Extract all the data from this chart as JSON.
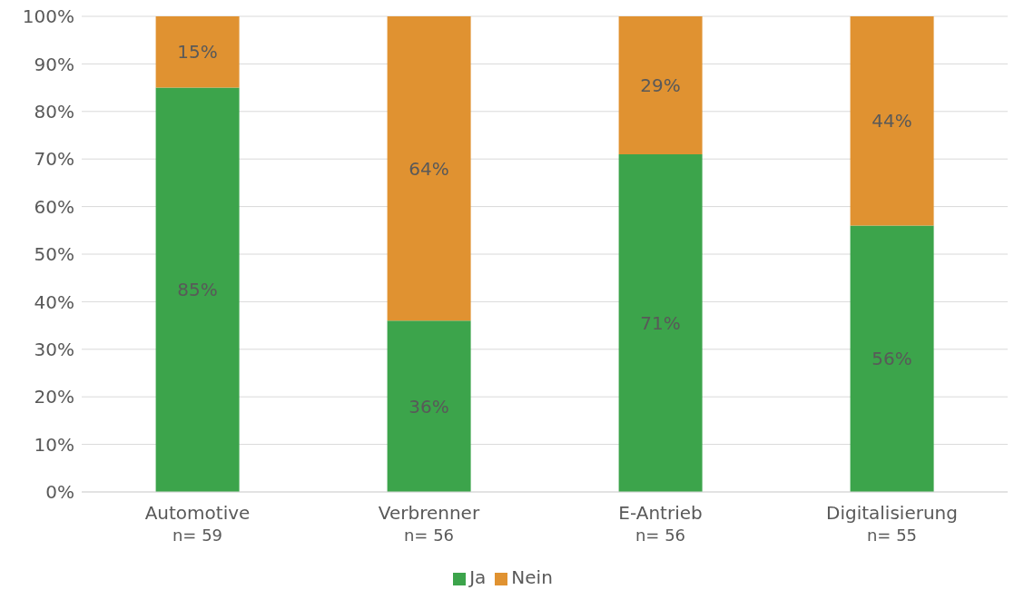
{
  "chart_data": {
    "type": "bar",
    "stacked": true,
    "categories": [
      "Automotive\nn= 59",
      "Verbrenner\nn= 56",
      "E-Antrieb\nn= 56",
      "Digitalisierung\nn= 55"
    ],
    "series": [
      {
        "name": "Ja",
        "color": "#3ca44b",
        "values": [
          85,
          36,
          71,
          56
        ],
        "value_labels": [
          "85%",
          "36%",
          "71%",
          "56%"
        ]
      },
      {
        "name": "Nein",
        "color": "#e09231",
        "values": [
          15,
          64,
          29,
          44
        ],
        "value_labels": [
          "15%",
          "64%",
          "29%",
          "44%"
        ]
      }
    ],
    "ylim": [
      0,
      100
    ],
    "yticks": [
      {
        "value": 0,
        "label": "0%"
      },
      {
        "value": 10,
        "label": "10%"
      },
      {
        "value": 20,
        "label": "20%"
      },
      {
        "value": 30,
        "label": "30%"
      },
      {
        "value": 40,
        "label": "40%"
      },
      {
        "value": 50,
        "label": "50%"
      },
      {
        "value": 60,
        "label": "60%"
      },
      {
        "value": 70,
        "label": "70%"
      },
      {
        "value": 80,
        "label": "80%"
      },
      {
        "value": 90,
        "label": "90%"
      },
      {
        "value": 100,
        "label": "100%"
      }
    ],
    "grid": "y",
    "legend": "bottom"
  }
}
